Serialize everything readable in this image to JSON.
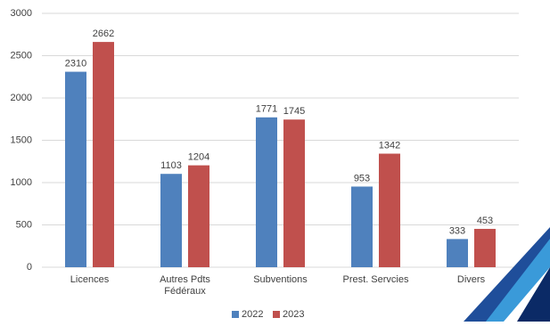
{
  "chart_data": {
    "type": "bar",
    "categories": [
      "Licences",
      "Autres Pdts Fédéraux",
      "Subventions",
      "Prest. Servcies",
      "Divers"
    ],
    "series": [
      {
        "name": "2022",
        "color": "#4f81bd",
        "values": [
          2310,
          1103,
          1771,
          953,
          333
        ]
      },
      {
        "name": "2023",
        "color": "#c0504d",
        "values": [
          2662,
          1204,
          1745,
          1342,
          453
        ]
      }
    ],
    "ylim": [
      0,
      3000
    ],
    "yticks": [
      0,
      500,
      1000,
      1500,
      2000,
      2500,
      3000
    ],
    "grid": true,
    "legend": "bottom"
  }
}
